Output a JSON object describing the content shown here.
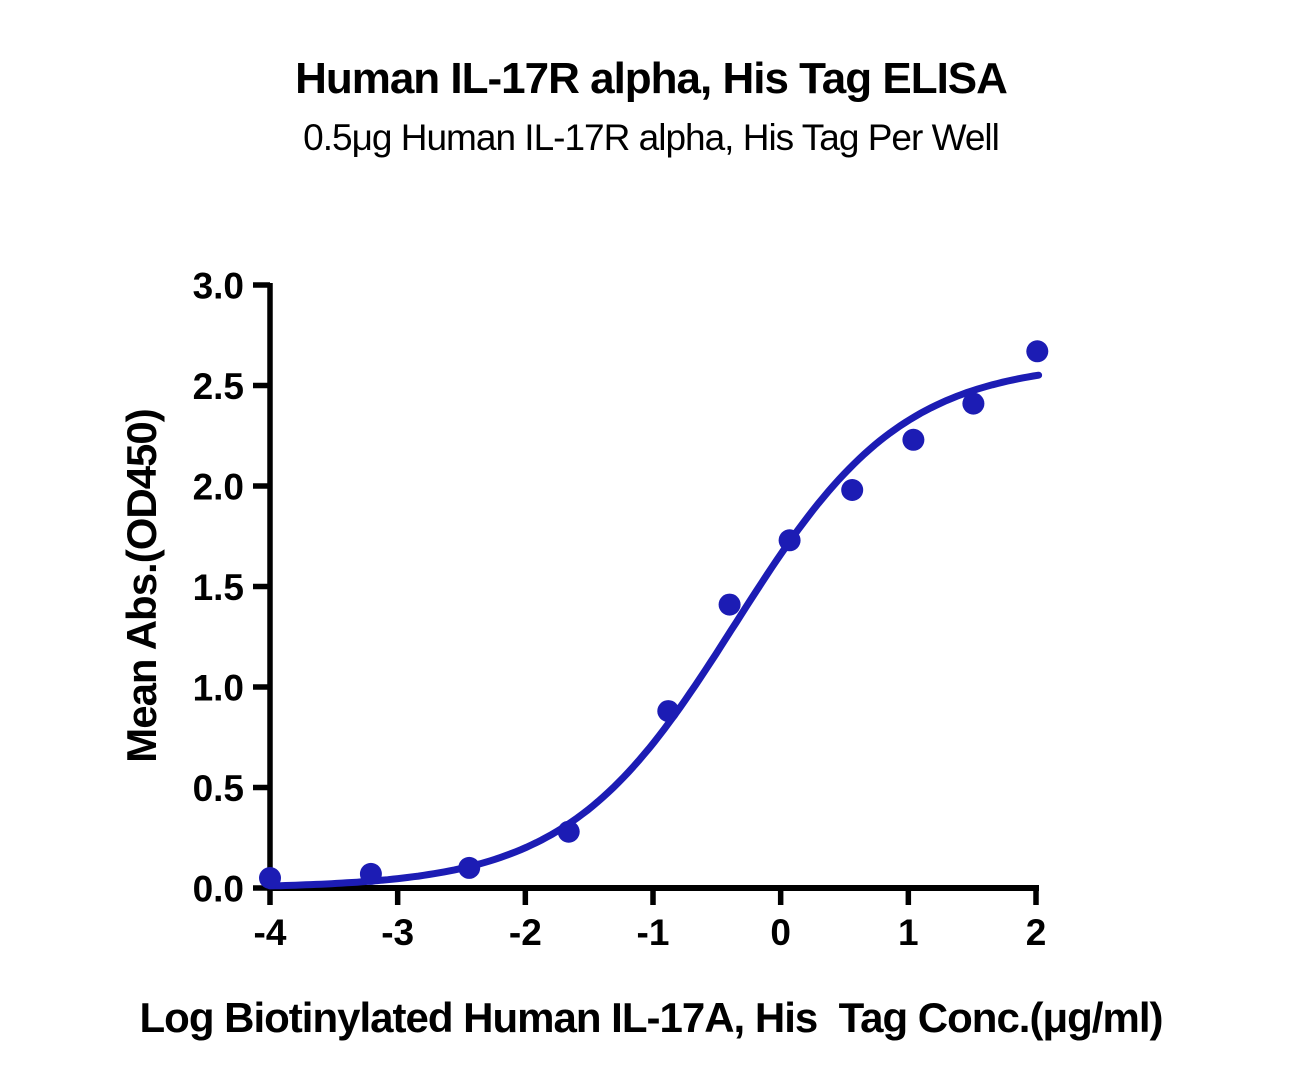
{
  "page": {
    "background": "#ffffff"
  },
  "chart_data": {
    "type": "scatter",
    "title": "Human IL-17R alpha, His Tag ELISA",
    "subtitle": "0.5μg Human IL-17R alpha, His Tag Per Well",
    "xlabel": "Log Biotinylated Human IL-17A, His  Tag Conc.(μg/ml)",
    "ylabel": "Mean Abs.(OD450)",
    "xlim": [
      -4,
      2
    ],
    "ylim": [
      0,
      3
    ],
    "grid": false,
    "legend": "none",
    "axis_color": "#000000",
    "marker_color": "#1C1CB4",
    "curve_color": "#1C1CB4",
    "x_ticks": [
      {
        "v": -4,
        "label": "-4"
      },
      {
        "v": -3,
        "label": "-3"
      },
      {
        "v": -2,
        "label": "-2"
      },
      {
        "v": -1,
        "label": "-1"
      },
      {
        "v": 0,
        "label": "0"
      },
      {
        "v": 1,
        "label": "1"
      },
      {
        "v": 2,
        "label": "2"
      }
    ],
    "y_ticks": [
      {
        "v": 0.0,
        "label": "0.0"
      },
      {
        "v": 0.5,
        "label": "0.5"
      },
      {
        "v": 1.0,
        "label": "1.0"
      },
      {
        "v": 1.5,
        "label": "1.5"
      },
      {
        "v": 2.0,
        "label": "2.0"
      },
      {
        "v": 2.5,
        "label": "2.5"
      },
      {
        "v": 3.0,
        "label": "3.0"
      }
    ],
    "points": [
      {
        "x": -4.0,
        "y": 0.05
      },
      {
        "x": -3.21,
        "y": 0.07
      },
      {
        "x": -2.44,
        "y": 0.1
      },
      {
        "x": -1.66,
        "y": 0.28
      },
      {
        "x": -0.88,
        "y": 0.88
      },
      {
        "x": -0.4,
        "y": 1.41
      },
      {
        "x": 0.07,
        "y": 1.73
      },
      {
        "x": 0.56,
        "y": 1.98
      },
      {
        "x": 1.04,
        "y": 2.23
      },
      {
        "x": 1.51,
        "y": 2.41
      },
      {
        "x": 2.01,
        "y": 2.67
      }
    ],
    "curve_fit": {
      "model": "4PL",
      "bottom": 0.0,
      "top": 2.62,
      "log_ec50": -0.36,
      "hill": 0.66,
      "x_start": -4.0,
      "x_end": 2.02
    }
  }
}
